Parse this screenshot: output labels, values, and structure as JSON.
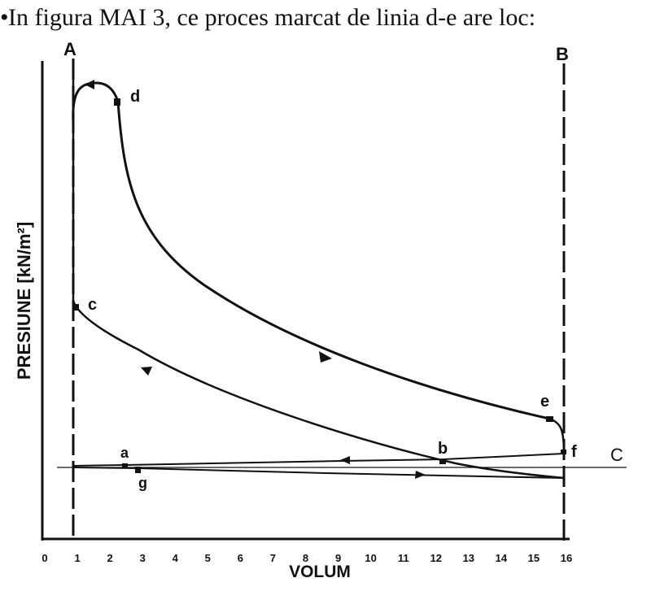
{
  "question": "In figura MAI 3, ce proces marcat de linia d-e are loc:",
  "bullet": "•",
  "diagram": {
    "line_labels": {
      "A": "A",
      "B": "B",
      "C": "C"
    },
    "point_labels": {
      "a": "a",
      "b": "b",
      "c": "c",
      "d": "d",
      "e": "e",
      "f": "f",
      "g": "g"
    },
    "y_axis_label": "PRESIUNE [kN/m²]",
    "x_axis_label": "VOLUM",
    "x_ticks": [
      "0",
      "1",
      "2",
      "3",
      "4",
      "5",
      "6",
      "7",
      "8",
      "9",
      "10",
      "11",
      "12",
      "13",
      "14",
      "15",
      "16"
    ]
  }
}
